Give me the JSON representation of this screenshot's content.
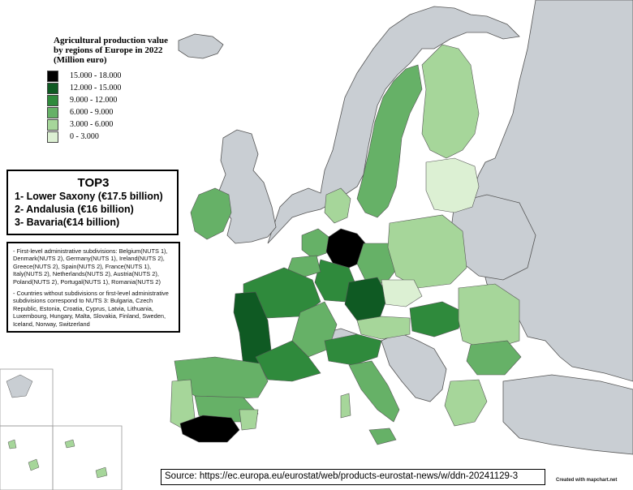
{
  "legend": {
    "title": "Agricultural production value by regions of Europe in 2022 (Million euro)",
    "items": [
      {
        "label": "15.000 - 18.000",
        "color": "#000000"
      },
      {
        "label": "12.000 - 15.000",
        "color": "#0f5a23"
      },
      {
        "label": "9.000 - 12.000",
        "color": "#2f8a3c"
      },
      {
        "label": "6.000 - 9.000",
        "color": "#66b167"
      },
      {
        "label": "3.000 - 6.000",
        "color": "#a6d69a"
      },
      {
        "label": "0 - 3.000",
        "color": "#dcf0d3"
      }
    ]
  },
  "top3": {
    "title": "TOP3",
    "items": [
      "1- Lower Saxony (€17.5 billion)",
      "2- Andalusia (€16 billion)",
      "3- Bavaria(€14 billion)"
    ]
  },
  "notes": {
    "first": "- First-level administrative subdivisions: Belgium(NUTS 1), Denmark(NUTS 2), Germany(NUTS 1), Ireland(NUTS 2), Greece(NUTS 2), Spain(NUTS 2), France(NUTS 1), Italy(NUTS 2), Netherlands(NUTS 2), Austria(NUTS 2), Poland(NUTS 2), Portugal(NUTS 1), Romania(NUTS 2)",
    "second": "- Countries without subdivisions or first-level administrative subdivisions correspond to NUTS 3: Bulgaria, Czech Republic, Estonia, Croatia, Cyprus, Latvia, Lithuania, Luxembourg, Hungary, Malta, Slovakia, Finland, Sweden, Iceland, Norway, Switzerland"
  },
  "source": "Source: https://ec.europa.eu/eurostat/web/products-eurostat-news/w/ddn-20241129-3",
  "credit": "Created with mapchart.net",
  "colors": {
    "sea": "#ffffff",
    "no_data": "#c9ced3",
    "border": "#555555"
  },
  "highlighted_regions": [
    {
      "name": "Lower Saxony",
      "class": "15.000 - 18.000"
    },
    {
      "name": "Andalusia",
      "class": "15.000 - 18.000"
    },
    {
      "name": "Bavaria",
      "class": "12.000 - 15.000"
    }
  ]
}
